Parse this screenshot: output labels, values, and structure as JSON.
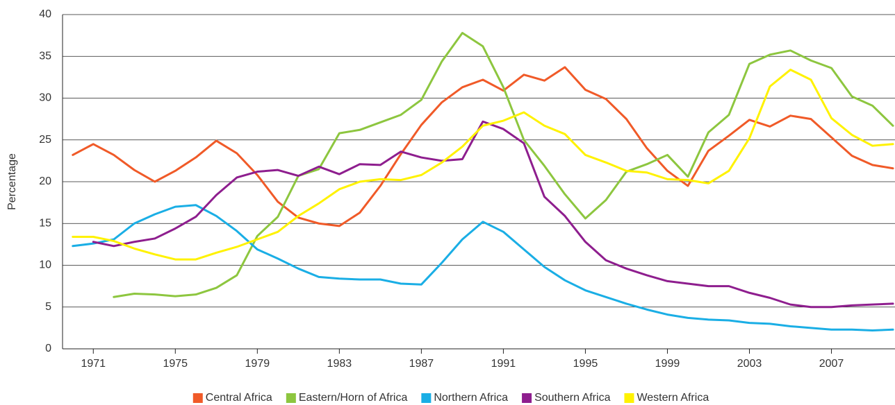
{
  "chart_data": {
    "type": "line",
    "y_label": "Percentage",
    "x": [
      1970,
      1971,
      1972,
      1973,
      1974,
      1975,
      1976,
      1977,
      1978,
      1979,
      1980,
      1981,
      1982,
      1983,
      1984,
      1985,
      1986,
      1987,
      1988,
      1989,
      1990,
      1991,
      1992,
      1993,
      1994,
      1995,
      1996,
      1997,
      1998,
      1999,
      2000,
      2001,
      2002,
      2003,
      2004,
      2005,
      2006,
      2007,
      2008,
      2009,
      2010
    ],
    "series": [
      {
        "name": "Central Africa",
        "color": "#f05a28",
        "values": [
          23.2,
          24.5,
          23.2,
          21.4,
          20.0,
          21.3,
          22.9,
          24.9,
          23.4,
          20.8,
          17.6,
          15.7,
          15.0,
          14.7,
          16.3,
          19.5,
          23.3,
          26.8,
          29.5,
          31.3,
          32.2,
          30.9,
          32.8,
          32.1,
          33.7,
          31.0,
          29.9,
          27.5,
          24.0,
          21.3,
          19.5,
          23.7,
          25.5,
          27.4,
          26.6,
          27.9,
          27.5,
          25.3,
          23.1,
          22.0,
          21.6
        ]
      },
      {
        "name": "Eastern/Horn of Africa",
        "color": "#8dc63f",
        "values": [
          null,
          null,
          6.2,
          6.6,
          6.5,
          6.3,
          6.5,
          7.3,
          8.8,
          13.5,
          15.8,
          20.7,
          21.5,
          25.8,
          26.2,
          27.1,
          28.0,
          29.8,
          34.4,
          37.8,
          36.2,
          31.3,
          25.0,
          21.9,
          18.5,
          15.6,
          17.8,
          21.2,
          22.1,
          23.2,
          20.6,
          25.9,
          28.0,
          34.1,
          35.2,
          35.7,
          34.5,
          33.6,
          30.2,
          29.1,
          26.7
        ]
      },
      {
        "name": "Northern Africa",
        "color": "#1aaee5",
        "values": [
          12.3,
          12.6,
          13.1,
          15.0,
          16.1,
          17.0,
          17.2,
          15.9,
          14.1,
          11.9,
          10.8,
          9.6,
          8.6,
          8.4,
          8.3,
          8.3,
          7.8,
          7.7,
          10.3,
          13.1,
          15.2,
          14.0,
          11.9,
          9.8,
          8.2,
          7.0,
          6.2,
          5.4,
          4.7,
          4.1,
          3.7,
          3.5,
          3.4,
          3.1,
          3.0,
          2.7,
          2.5,
          2.3,
          2.3,
          2.2,
          2.3
        ]
      },
      {
        "name": "Southern Africa",
        "color": "#8e1e8e",
        "values": [
          null,
          12.8,
          12.3,
          12.8,
          13.2,
          14.4,
          15.8,
          18.4,
          20.5,
          21.2,
          21.4,
          20.7,
          21.8,
          20.9,
          22.1,
          22.0,
          23.6,
          22.9,
          22.5,
          22.7,
          27.2,
          26.3,
          24.6,
          18.2,
          15.9,
          12.8,
          10.6,
          9.6,
          8.8,
          8.1,
          7.8,
          7.5,
          7.5,
          6.7,
          6.1,
          5.3,
          5.0,
          5.0,
          5.2,
          5.3,
          5.4
        ]
      },
      {
        "name": "Western Africa",
        "color": "#fff200",
        "values": [
          13.4,
          13.4,
          12.9,
          12.0,
          11.3,
          10.7,
          10.7,
          11.5,
          12.2,
          13.1,
          14.0,
          15.9,
          17.4,
          19.1,
          20.0,
          20.3,
          20.2,
          20.8,
          22.3,
          24.2,
          26.7,
          27.3,
          28.3,
          26.7,
          25.7,
          23.2,
          22.3,
          21.3,
          21.1,
          20.3,
          20.2,
          19.8,
          21.3,
          25.2,
          31.4,
          33.4,
          32.2,
          27.6,
          25.6,
          24.3,
          24.5
        ]
      }
    ],
    "xlim": [
      1969.5,
      2010.1
    ],
    "xticks": [
      1971,
      1975,
      1979,
      1983,
      1987,
      1991,
      1995,
      1999,
      2003,
      2007
    ],
    "ylim": [
      0,
      40
    ],
    "yticks": [
      0,
      5,
      10,
      15,
      20,
      25,
      30,
      35,
      40
    ],
    "grid": true,
    "legend": "bottom"
  }
}
